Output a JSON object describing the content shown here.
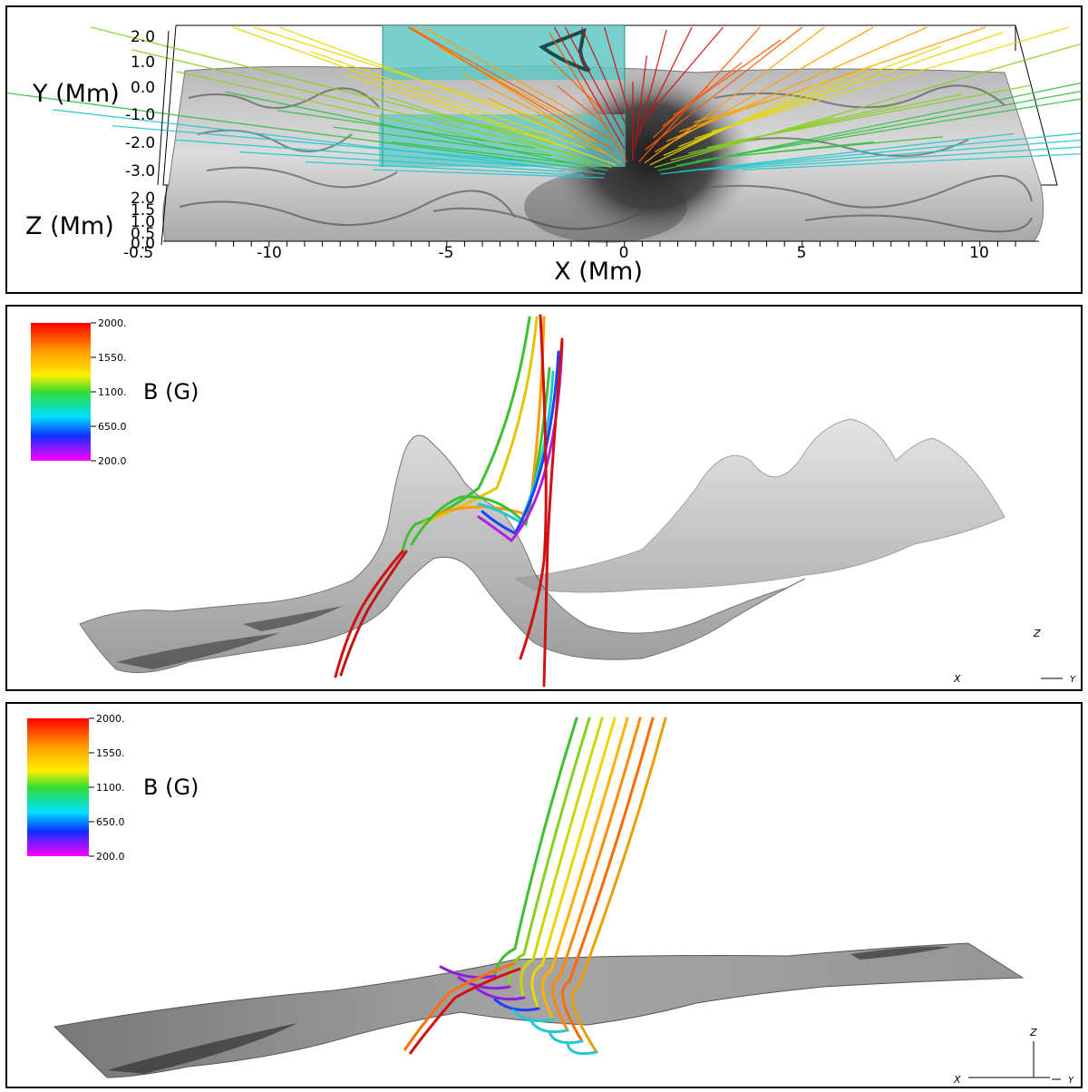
{
  "top_panel": {
    "y_axis_label": "Y (Mm)",
    "z_axis_label": "Z (Mm)",
    "x_axis_label": "X (Mm)",
    "y_ticks": [
      "2.0",
      "1.0",
      "0.0",
      "-1.0",
      "-2.0",
      "-3.0"
    ],
    "z_ticks": [
      "2.0",
      "1.5",
      "1.0",
      "0.5",
      "0.0",
      "-0.5"
    ],
    "x_ticks": [
      "-10",
      "-5",
      "0",
      "5",
      "10"
    ]
  },
  "middle_panel": {
    "colorbar_label": "B (G)",
    "colorbar_ticks": [
      "2000.",
      "1550.",
      "1100.",
      "650.0",
      "200.0"
    ],
    "orientation_axes": {
      "x": "X",
      "y": "Y",
      "z": "Z"
    }
  },
  "bottom_panel": {
    "colorbar_label": "B (G)",
    "colorbar_ticks": [
      "2000.",
      "1550.",
      "1100.",
      "650.0",
      "200.0"
    ],
    "orientation_axes": {
      "x": "X",
      "y": "Y",
      "z": "Z"
    }
  },
  "colors": {
    "cyan_box": "#5fc8c4",
    "surface": "#9a9a9a",
    "field_high": "#d01010",
    "field_low": "#9010e0"
  }
}
